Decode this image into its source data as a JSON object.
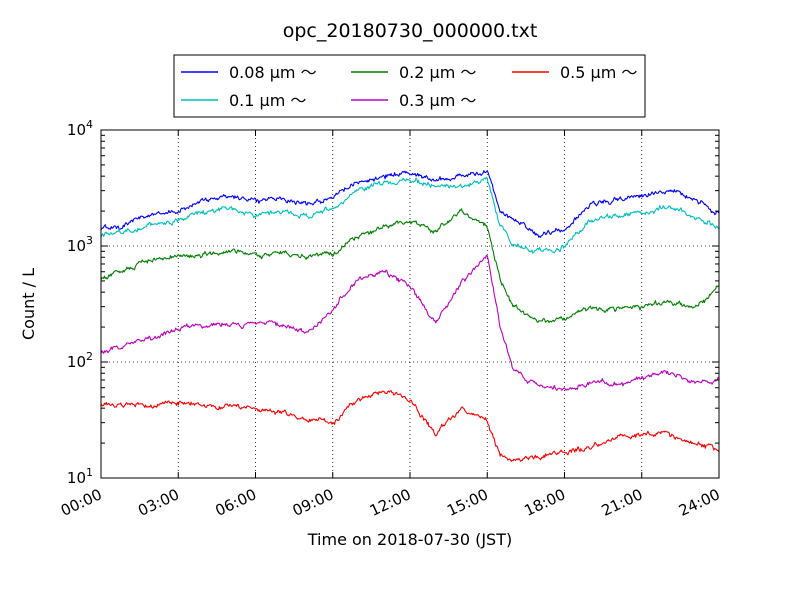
{
  "chart_data": {
    "type": "line",
    "title": "opc_20180730_000000.txt",
    "xlabel": "Time on 2018-07-30 (JST)",
    "ylabel": "Count / L",
    "yscale": "log",
    "ylim": [
      10,
      10000
    ],
    "xlim": [
      "00:00",
      "24:00"
    ],
    "x_ticks": [
      "00:00",
      "03:00",
      "06:00",
      "09:00",
      "12:00",
      "15:00",
      "18:00",
      "21:00",
      "24:00"
    ],
    "y_ticks": [
      {
        "base": "10",
        "exp": "1"
      },
      {
        "base": "10",
        "exp": "2"
      },
      {
        "base": "10",
        "exp": "3"
      },
      {
        "base": "10",
        "exp": "4"
      }
    ],
    "grid": true,
    "legend_position": "top-center",
    "legend_columns": 3,
    "x": [
      0,
      1,
      2,
      3,
      4,
      5,
      6,
      7,
      8,
      9,
      10,
      11,
      12,
      13,
      14,
      15,
      15.5,
      16,
      17,
      18,
      19,
      20,
      21,
      22,
      23,
      24
    ],
    "series": [
      {
        "name": "0.08 μm ～",
        "color": "#0000ff",
        "values": [
          1400,
          1550,
          1900,
          2000,
          2500,
          2700,
          2500,
          2600,
          2300,
          2700,
          3500,
          4000,
          4300,
          3700,
          4000,
          4400,
          2000,
          1700,
          1250,
          1400,
          2300,
          2500,
          2700,
          3100,
          2600,
          1850
        ]
      },
      {
        "name": "0.1 μm ～",
        "color": "#00bfbf",
        "values": [
          1200,
          1350,
          1550,
          1650,
          1950,
          2100,
          1850,
          1950,
          1800,
          2100,
          3000,
          3500,
          3800,
          3200,
          3300,
          3700,
          1500,
          1050,
          900,
          1000,
          1700,
          1800,
          1900,
          2200,
          1800,
          1400
        ]
      },
      {
        "name": "0.2 μm ～",
        "color": "#008000",
        "values": [
          520,
          620,
          740,
          830,
          870,
          880,
          850,
          880,
          800,
          850,
          1200,
          1500,
          1650,
          1350,
          1950,
          1500,
          500,
          300,
          220,
          240,
          290,
          280,
          300,
          340,
          280,
          440
        ]
      },
      {
        "name": "0.3 μm ～",
        "color": "#bf00bf",
        "values": [
          120,
          140,
          160,
          195,
          210,
          205,
          210,
          210,
          180,
          290,
          520,
          600,
          450,
          210,
          500,
          830,
          200,
          90,
          60,
          58,
          66,
          64,
          72,
          82,
          66,
          72
        ]
      },
      {
        "name": "0.5 μm ～",
        "color": "#ff0000",
        "values": [
          42,
          43,
          42,
          44,
          42,
          42,
          39,
          37,
          32,
          30,
          48,
          55,
          48,
          24,
          40,
          32,
          16,
          14,
          15,
          17,
          18,
          22,
          24,
          24,
          20,
          17
        ]
      }
    ]
  }
}
